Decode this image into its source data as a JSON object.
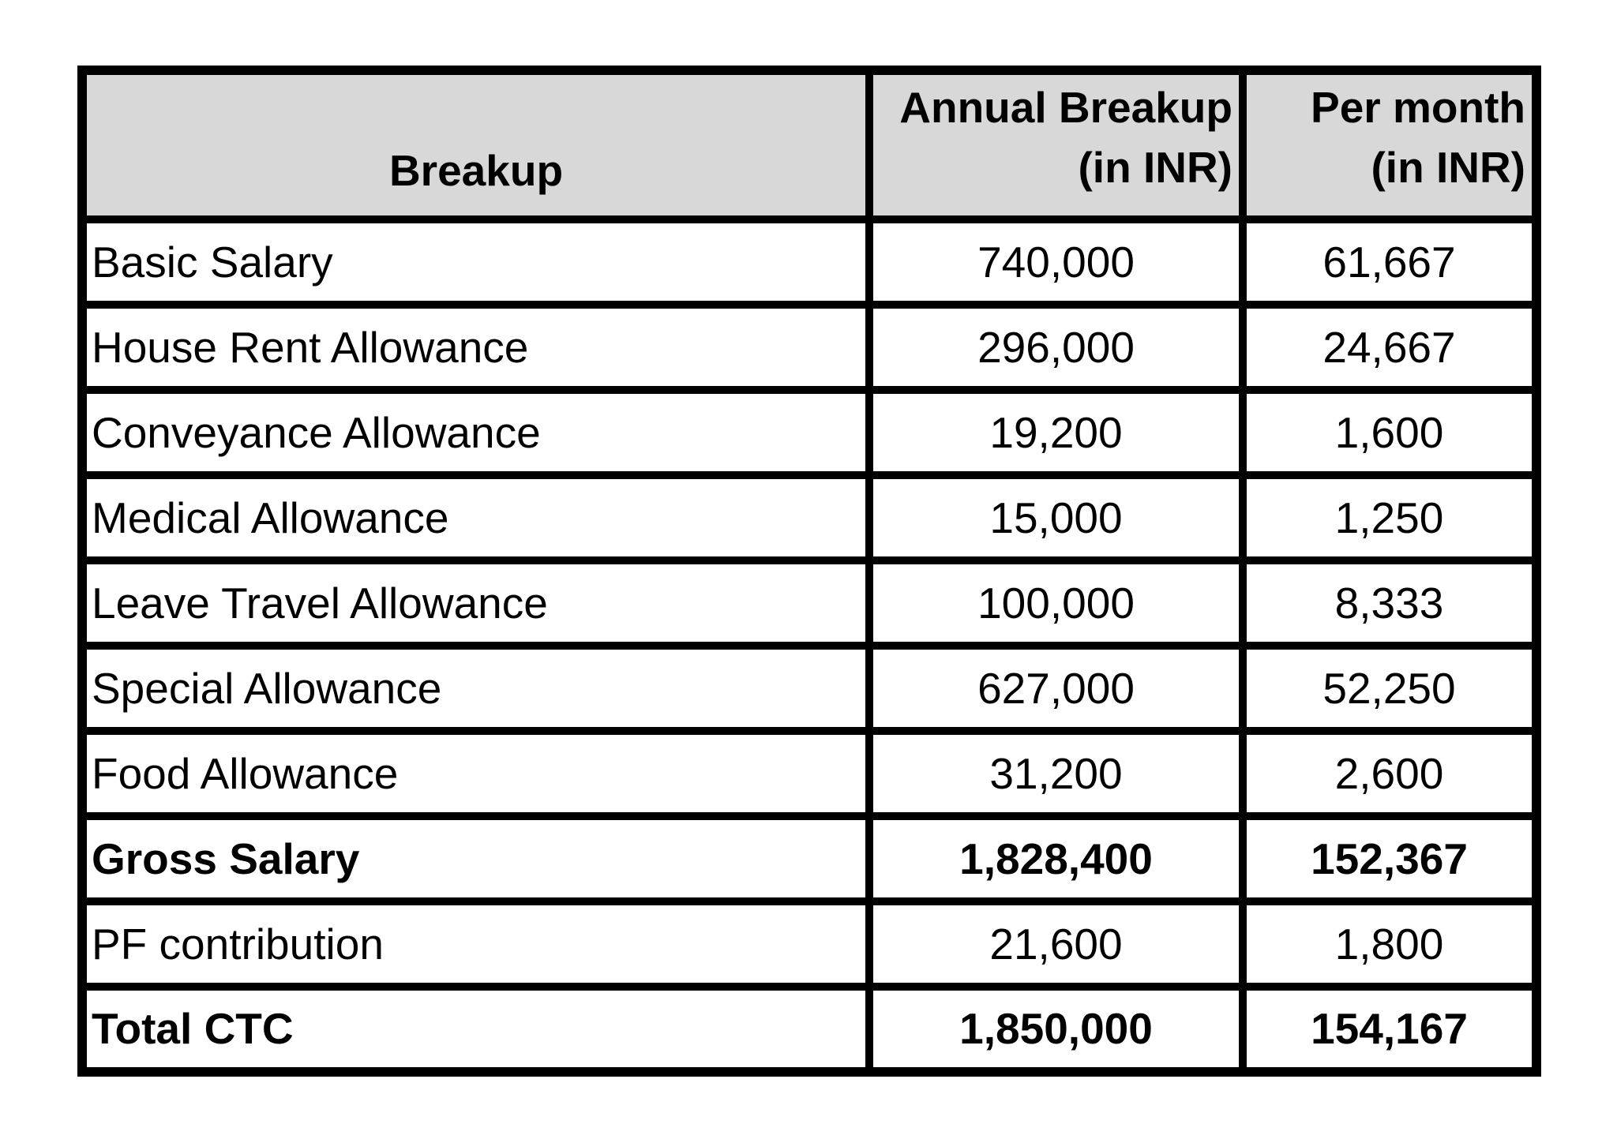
{
  "colors": {
    "header_bg": "#d8d8d8",
    "border": "#000000",
    "text": "#000000",
    "page_bg": "#ffffff"
  },
  "table": {
    "headers": {
      "breakup": "Breakup",
      "annual_line1": "Annual Breakup",
      "annual_line2": "(in INR)",
      "per_month_line1": "Per month",
      "per_month_line2": "(in INR)"
    },
    "rows": [
      {
        "label": "Basic Salary",
        "annual": "740,000",
        "monthly": "61,667"
      },
      {
        "label": "House Rent Allowance",
        "annual": "296,000",
        "monthly": "24,667"
      },
      {
        "label": "Conveyance Allowance",
        "annual": "19,200",
        "monthly": "1,600"
      },
      {
        "label": "Medical Allowance",
        "annual": "15,000",
        "monthly": "1,250"
      },
      {
        "label": "Leave Travel Allowance",
        "annual": "100,000",
        "monthly": "8,333"
      },
      {
        "label": "Special Allowance",
        "annual": "627,000",
        "monthly": "52,250"
      },
      {
        "label": "Food Allowance",
        "annual": "31,200",
        "monthly": "2,600"
      },
      {
        "label": "Gross Salary",
        "annual": "1,828,400",
        "monthly": "152,367"
      },
      {
        "label": "PF contribution",
        "annual": "21,600",
        "monthly": "1,800"
      },
      {
        "label": "Total CTC",
        "annual": "1,850,000",
        "monthly": "154,167"
      }
    ]
  }
}
